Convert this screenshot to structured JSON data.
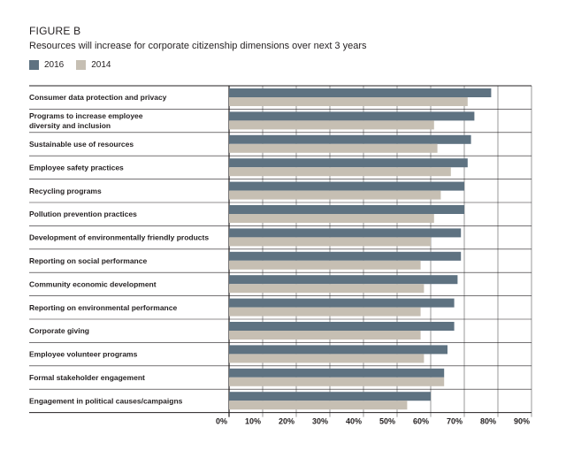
{
  "figure_label": "FIGURE B",
  "chart_data": {
    "type": "bar",
    "orientation": "horizontal",
    "title": "Resources will increase for corporate citizenship dimensions over next 3 years",
    "categories": [
      "Consumer data protection and privacy",
      "Programs to increase employee|diversity and inclusion",
      "Sustainable use of resources",
      "Employee safety practices",
      "Recycling programs",
      "Pollution prevention practices",
      "Development of environmentally friendly products",
      "Reporting on social performance",
      "Community economic development",
      "Reporting on environmental performance",
      "Corporate giving",
      "Employee volunteer programs",
      "Formal stakeholder engagement",
      "Engagement in political causes/campaigns"
    ],
    "series": [
      {
        "name": "2016",
        "color": "#5e7281",
        "values": [
          78,
          73,
          72,
          71,
          70,
          70,
          69,
          69,
          68,
          67,
          67,
          65,
          64,
          60
        ]
      },
      {
        "name": "2014",
        "color": "#c6bfb3",
        "values": [
          71,
          61,
          62,
          66,
          63,
          61,
          60,
          57,
          58,
          57,
          57,
          58,
          64,
          53
        ]
      }
    ],
    "xlim": [
      0,
      90
    ],
    "xticks": [
      "0%",
      "10%",
      "20%",
      "30%",
      "40%",
      "50%",
      "60%",
      "70%",
      "80%",
      "90%"
    ],
    "xlabel": "",
    "ylabel": "",
    "gridlines": true
  }
}
